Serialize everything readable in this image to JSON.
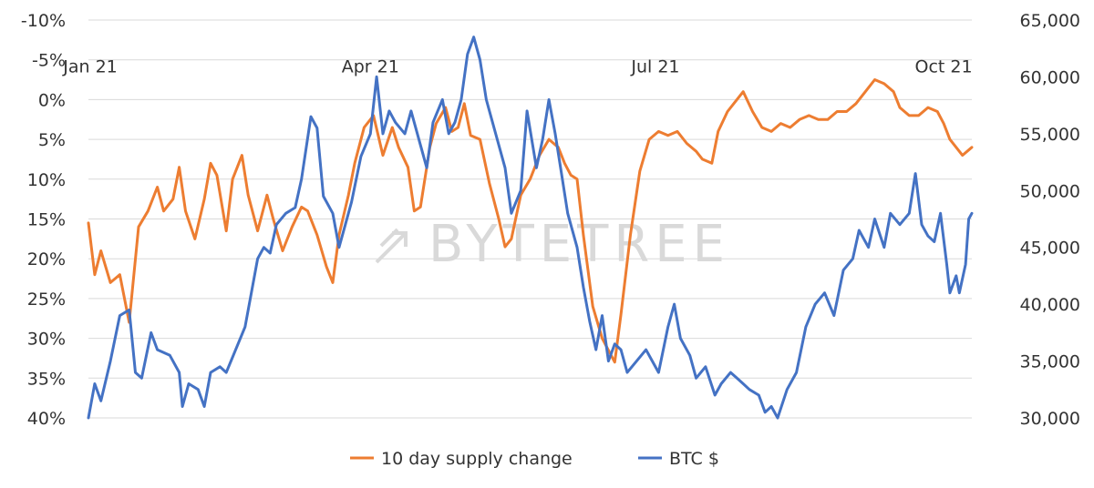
{
  "chart_data": {
    "type": "line",
    "title": "",
    "xlabel": "",
    "ylabel_left": "",
    "ylabel_right": "",
    "x_start": "2021-01-01",
    "x_end": "2021-10-10",
    "x_ticks": [
      {
        "label": "Jan 21",
        "date": "2021-01-01"
      },
      {
        "label": "Apr 21",
        "date": "2021-04-01"
      },
      {
        "label": "Jul 21",
        "date": "2021-07-01"
      },
      {
        "label": "Oct 21",
        "date": "2021-10-01"
      }
    ],
    "y_left": {
      "min": -10,
      "max": 40,
      "inverted": true,
      "ticks": [
        -10,
        -5,
        0,
        5,
        10,
        15,
        20,
        25,
        30,
        35,
        40
      ],
      "tick_labels": [
        "-10%",
        "-5%",
        "0%",
        "5%",
        "10%",
        "15%",
        "20%",
        "25%",
        "30%",
        "35%",
        "40%"
      ]
    },
    "y_right": {
      "min": 30000,
      "max": 65000,
      "ticks": [
        30000,
        35000,
        40000,
        45000,
        50000,
        55000,
        60000,
        65000
      ],
      "tick_labels": [
        "30,000",
        "35,000",
        "40,000",
        "45,000",
        "50,000",
        "55,000",
        "60,000",
        "65,000"
      ]
    },
    "grid": true,
    "legend_position": "bottom",
    "series": [
      {
        "name": "10 day supply change",
        "axis": "left",
        "color": "#ed7d31",
        "points": [
          [
            "2021-01-01",
            15.5
          ],
          [
            "2021-01-03",
            22.0
          ],
          [
            "2021-01-05",
            19.0
          ],
          [
            "2021-01-08",
            23.0
          ],
          [
            "2021-01-11",
            22.0
          ],
          [
            "2021-01-14",
            28.0
          ],
          [
            "2021-01-17",
            16.0
          ],
          [
            "2021-01-20",
            14.0
          ],
          [
            "2021-01-23",
            11.0
          ],
          [
            "2021-01-25",
            14.0
          ],
          [
            "2021-01-28",
            12.5
          ],
          [
            "2021-01-30",
            8.5
          ],
          [
            "2021-02-01",
            14.0
          ],
          [
            "2021-02-04",
            17.5
          ],
          [
            "2021-02-07",
            12.5
          ],
          [
            "2021-02-09",
            8.0
          ],
          [
            "2021-02-11",
            9.5
          ],
          [
            "2021-02-14",
            16.5
          ],
          [
            "2021-02-16",
            10.0
          ],
          [
            "2021-02-19",
            7.0
          ],
          [
            "2021-02-21",
            12.0
          ],
          [
            "2021-02-24",
            16.5
          ],
          [
            "2021-02-27",
            12.0
          ],
          [
            "2021-03-01",
            15.0
          ],
          [
            "2021-03-04",
            19.0
          ],
          [
            "2021-03-07",
            16.0
          ],
          [
            "2021-03-10",
            13.5
          ],
          [
            "2021-03-12",
            14.0
          ],
          [
            "2021-03-15",
            17.0
          ],
          [
            "2021-03-18",
            21.0
          ],
          [
            "2021-03-20",
            23.0
          ],
          [
            "2021-03-22",
            17.0
          ],
          [
            "2021-03-25",
            12.0
          ],
          [
            "2021-03-27",
            8.0
          ],
          [
            "2021-03-30",
            3.5
          ],
          [
            "2021-04-02",
            2.0
          ],
          [
            "2021-04-05",
            7.0
          ],
          [
            "2021-04-08",
            3.5
          ],
          [
            "2021-04-10",
            6.0
          ],
          [
            "2021-04-13",
            8.5
          ],
          [
            "2021-04-15",
            14.0
          ],
          [
            "2021-04-17",
            13.5
          ],
          [
            "2021-04-20",
            6.0
          ],
          [
            "2021-04-22",
            3.0
          ],
          [
            "2021-04-25",
            1.0
          ],
          [
            "2021-04-27",
            4.0
          ],
          [
            "2021-04-29",
            3.5
          ],
          [
            "2021-05-01",
            0.5
          ],
          [
            "2021-05-03",
            4.5
          ],
          [
            "2021-05-06",
            5.0
          ],
          [
            "2021-05-09",
            10.5
          ],
          [
            "2021-05-12",
            15.0
          ],
          [
            "2021-05-14",
            18.5
          ],
          [
            "2021-05-16",
            17.5
          ],
          [
            "2021-05-19",
            12.0
          ],
          [
            "2021-05-22",
            10.0
          ],
          [
            "2021-05-25",
            7.0
          ],
          [
            "2021-05-28",
            5.0
          ],
          [
            "2021-05-31",
            6.0
          ],
          [
            "2021-06-02",
            8.0
          ],
          [
            "2021-06-04",
            9.5
          ],
          [
            "2021-06-06",
            10.0
          ],
          [
            "2021-06-08",
            17.0
          ],
          [
            "2021-06-11",
            26.0
          ],
          [
            "2021-06-14",
            30.0
          ],
          [
            "2021-06-16",
            31.5
          ],
          [
            "2021-06-18",
            33.0
          ],
          [
            "2021-06-20",
            27.0
          ],
          [
            "2021-06-23",
            17.0
          ],
          [
            "2021-06-26",
            9.0
          ],
          [
            "2021-06-29",
            5.0
          ],
          [
            "2021-07-02",
            4.0
          ],
          [
            "2021-07-05",
            4.5
          ],
          [
            "2021-07-08",
            4.0
          ],
          [
            "2021-07-11",
            5.5
          ],
          [
            "2021-07-14",
            6.5
          ],
          [
            "2021-07-16",
            7.5
          ],
          [
            "2021-07-19",
            8.0
          ],
          [
            "2021-07-21",
            4.0
          ],
          [
            "2021-07-24",
            1.5
          ],
          [
            "2021-07-27",
            0.0
          ],
          [
            "2021-07-29",
            -1.0
          ],
          [
            "2021-08-01",
            1.5
          ],
          [
            "2021-08-04",
            3.5
          ],
          [
            "2021-08-07",
            4.0
          ],
          [
            "2021-08-10",
            3.0
          ],
          [
            "2021-08-13",
            3.5
          ],
          [
            "2021-08-16",
            2.5
          ],
          [
            "2021-08-19",
            2.0
          ],
          [
            "2021-08-22",
            2.5
          ],
          [
            "2021-08-25",
            2.5
          ],
          [
            "2021-08-28",
            1.5
          ],
          [
            "2021-08-31",
            1.5
          ],
          [
            "2021-09-03",
            0.5
          ],
          [
            "2021-09-06",
            -1.0
          ],
          [
            "2021-09-09",
            -2.5
          ],
          [
            "2021-09-12",
            -2.0
          ],
          [
            "2021-09-15",
            -1.0
          ],
          [
            "2021-09-17",
            1.0
          ],
          [
            "2021-09-20",
            2.0
          ],
          [
            "2021-09-23",
            2.0
          ],
          [
            "2021-09-26",
            1.0
          ],
          [
            "2021-09-29",
            1.5
          ],
          [
            "2021-10-01",
            3.0
          ],
          [
            "2021-10-03",
            5.0
          ],
          [
            "2021-10-05",
            6.0
          ],
          [
            "2021-10-07",
            7.0
          ],
          [
            "2021-10-10",
            6.0
          ]
        ]
      },
      {
        "name": "BTC $",
        "axis": "right",
        "color": "#4472c4",
        "points": [
          [
            "2021-01-01",
            30000
          ],
          [
            "2021-01-03",
            33000
          ],
          [
            "2021-01-05",
            31500
          ],
          [
            "2021-01-08",
            35000
          ],
          [
            "2021-01-11",
            39000
          ],
          [
            "2021-01-14",
            39500
          ],
          [
            "2021-01-16",
            34000
          ],
          [
            "2021-01-18",
            33500
          ],
          [
            "2021-01-21",
            37500
          ],
          [
            "2021-01-23",
            36000
          ],
          [
            "2021-01-27",
            35500
          ],
          [
            "2021-01-30",
            34000
          ],
          [
            "2021-01-31",
            31000
          ],
          [
            "2021-02-02",
            33000
          ],
          [
            "2021-02-05",
            32500
          ],
          [
            "2021-02-07",
            31000
          ],
          [
            "2021-02-09",
            34000
          ],
          [
            "2021-02-12",
            34500
          ],
          [
            "2021-02-14",
            34000
          ],
          [
            "2021-02-17",
            36000
          ],
          [
            "2021-02-20",
            38000
          ],
          [
            "2021-02-22",
            41000
          ],
          [
            "2021-02-24",
            44000
          ],
          [
            "2021-02-26",
            45000
          ],
          [
            "2021-02-28",
            44500
          ],
          [
            "2021-03-02",
            47000
          ],
          [
            "2021-03-05",
            48000
          ],
          [
            "2021-03-08",
            48500
          ],
          [
            "2021-03-10",
            51000
          ],
          [
            "2021-03-13",
            56500
          ],
          [
            "2021-03-15",
            55500
          ],
          [
            "2021-03-17",
            49500
          ],
          [
            "2021-03-20",
            48000
          ],
          [
            "2021-03-22",
            45000
          ],
          [
            "2021-03-24",
            47000
          ],
          [
            "2021-03-26",
            49000
          ],
          [
            "2021-03-29",
            53000
          ],
          [
            "2021-04-01",
            55000
          ],
          [
            "2021-04-03",
            60000
          ],
          [
            "2021-04-05",
            55000
          ],
          [
            "2021-04-07",
            57000
          ],
          [
            "2021-04-09",
            56000
          ],
          [
            "2021-04-12",
            55000
          ],
          [
            "2021-04-14",
            57000
          ],
          [
            "2021-04-17",
            54000
          ],
          [
            "2021-04-19",
            52000
          ],
          [
            "2021-04-21",
            56000
          ],
          [
            "2021-04-24",
            58000
          ],
          [
            "2021-04-26",
            55000
          ],
          [
            "2021-04-28",
            56000
          ],
          [
            "2021-04-30",
            58000
          ],
          [
            "2021-05-02",
            62000
          ],
          [
            "2021-05-04",
            63500
          ],
          [
            "2021-05-06",
            61500
          ],
          [
            "2021-05-08",
            58000
          ],
          [
            "2021-05-11",
            55000
          ],
          [
            "2021-05-14",
            52000
          ],
          [
            "2021-05-16",
            48000
          ],
          [
            "2021-05-19",
            50000
          ],
          [
            "2021-05-21",
            57000
          ],
          [
            "2021-05-24",
            52000
          ],
          [
            "2021-05-26",
            54500
          ],
          [
            "2021-05-28",
            58000
          ],
          [
            "2021-05-30",
            55000
          ],
          [
            "2021-06-01",
            51500
          ],
          [
            "2021-06-03",
            48000
          ],
          [
            "2021-06-06",
            45000
          ],
          [
            "2021-06-08",
            41500
          ],
          [
            "2021-06-10",
            38500
          ],
          [
            "2021-06-12",
            36000
          ],
          [
            "2021-06-14",
            39000
          ],
          [
            "2021-06-16",
            35000
          ],
          [
            "2021-06-18",
            36500
          ],
          [
            "2021-06-20",
            36000
          ],
          [
            "2021-06-22",
            34000
          ],
          [
            "2021-06-25",
            35000
          ],
          [
            "2021-06-28",
            36000
          ],
          [
            "2021-06-30",
            35000
          ],
          [
            "2021-07-02",
            34000
          ],
          [
            "2021-07-05",
            38000
          ],
          [
            "2021-07-07",
            40000
          ],
          [
            "2021-07-09",
            37000
          ],
          [
            "2021-07-12",
            35500
          ],
          [
            "2021-07-14",
            33500
          ],
          [
            "2021-07-17",
            34500
          ],
          [
            "2021-07-20",
            32000
          ],
          [
            "2021-07-22",
            33000
          ],
          [
            "2021-07-25",
            34000
          ],
          [
            "2021-07-27",
            33500
          ],
          [
            "2021-07-29",
            33000
          ],
          [
            "2021-07-31",
            32500
          ],
          [
            "2021-08-03",
            32000
          ],
          [
            "2021-08-05",
            30500
          ],
          [
            "2021-08-07",
            31000
          ],
          [
            "2021-08-09",
            30000
          ],
          [
            "2021-08-12",
            32500
          ],
          [
            "2021-08-15",
            34000
          ],
          [
            "2021-08-18",
            38000
          ],
          [
            "2021-08-21",
            40000
          ],
          [
            "2021-08-24",
            41000
          ],
          [
            "2021-08-27",
            39000
          ],
          [
            "2021-08-30",
            43000
          ],
          [
            "2021-09-02",
            44000
          ],
          [
            "2021-09-04",
            46500
          ],
          [
            "2021-09-07",
            45000
          ],
          [
            "2021-09-09",
            47500
          ],
          [
            "2021-09-12",
            45000
          ],
          [
            "2021-09-14",
            48000
          ],
          [
            "2021-09-17",
            47000
          ],
          [
            "2021-09-20",
            48000
          ],
          [
            "2021-09-22",
            51500
          ],
          [
            "2021-09-24",
            47000
          ],
          [
            "2021-09-26",
            46000
          ],
          [
            "2021-09-28",
            45500
          ],
          [
            "2021-09-30",
            48000
          ],
          [
            "2021-10-02",
            43500
          ],
          [
            "2021-10-03",
            41000
          ],
          [
            "2021-10-05",
            42500
          ],
          [
            "2021-10-06",
            41000
          ],
          [
            "2021-10-08",
            43500
          ],
          [
            "2021-10-09",
            47500
          ],
          [
            "2021-10-10",
            48000
          ]
        ]
      }
    ],
    "watermark": "BYTETREE",
    "colors": {
      "supply": "#ed7d31",
      "btc": "#4472c4",
      "grid": "#d9d9d9",
      "text": "#333333",
      "watermark": "#d9d9d9"
    }
  }
}
